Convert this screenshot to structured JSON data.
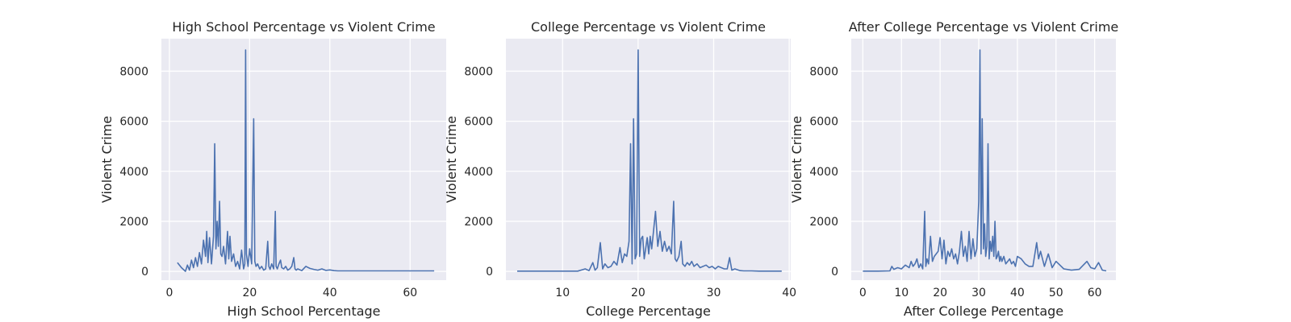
{
  "colors": {
    "series": "#4c72b0",
    "plot_background": "#eaeaf2",
    "grid": "#ffffff"
  },
  "chart_data": [
    {
      "type": "line",
      "title": "High School Percentage vs Violent Crime",
      "xlabel": "High School Percentage",
      "ylabel": "Violent Crime",
      "xlim": [
        -2,
        69
      ],
      "ylim": [
        -350,
        9300
      ],
      "xticks": [
        0,
        20,
        40,
        60
      ],
      "yticks": [
        0,
        2000,
        4000,
        6000,
        8000
      ],
      "grid": true,
      "series": [
        {
          "x": [
            2.0,
            3.0,
            4.0,
            4.5,
            5.0,
            5.5,
            6.0,
            6.5,
            7.0,
            7.5,
            8.0,
            8.5,
            9.0,
            9.3,
            9.6,
            10.0,
            10.5,
            11.0,
            11.3,
            11.6,
            11.9,
            12.2,
            12.5,
            12.8,
            13.1,
            13.5,
            14.0,
            14.5,
            14.8,
            15.1,
            15.5,
            16.0,
            16.5,
            17.0,
            17.5,
            18.0,
            18.5,
            18.8,
            19.0,
            19.2,
            19.6,
            20.0,
            20.5,
            21.0,
            21.3,
            21.6,
            22.0,
            22.5,
            23.0,
            23.5,
            24.0,
            24.5,
            24.8,
            25.1,
            25.5,
            26.0,
            26.4,
            26.6,
            26.9,
            27.3,
            27.7,
            28.0,
            28.5,
            29.0,
            29.5,
            30.0,
            30.5,
            31.0,
            31.3,
            31.6,
            32.0,
            33.0,
            34.0,
            35.0,
            36.0,
            37.0,
            38.0,
            39.0,
            40.0,
            41.0,
            42.0,
            45.0,
            50.0,
            55.0,
            60.0,
            66.0
          ],
          "y": [
            350,
            150,
            0,
            250,
            50,
            450,
            150,
            550,
            200,
            750,
            300,
            1250,
            600,
            1600,
            350,
            1350,
            300,
            1400,
            5100,
            900,
            2000,
            1000,
            2800,
            700,
            600,
            1000,
            300,
            1600,
            500,
            1400,
            400,
            700,
            200,
            400,
            100,
            850,
            100,
            300,
            8850,
            700,
            200,
            900,
            300,
            6100,
            400,
            200,
            300,
            100,
            200,
            50,
            100,
            1200,
            200,
            80,
            300,
            100,
            2400,
            200,
            100,
            300,
            450,
            150,
            100,
            200,
            50,
            100,
            200,
            550,
            100,
            50,
            100,
            30,
            200,
            120,
            80,
            50,
            100,
            40,
            60,
            30,
            20,
            20,
            20,
            20,
            20,
            20
          ]
        }
      ]
    },
    {
      "type": "line",
      "title": "College Percentage vs Violent Crime",
      "xlabel": "College Percentage",
      "ylabel": "Violent Crime",
      "xlim": [
        2.5,
        40.2
      ],
      "ylim": [
        -350,
        9300
      ],
      "xticks": [
        10,
        20,
        30,
        40
      ],
      "yticks": [
        0,
        2000,
        4000,
        6000,
        8000
      ],
      "grid": true,
      "series": [
        {
          "x": [
            4.0,
            6.0,
            8.0,
            10.0,
            12.0,
            13.0,
            13.5,
            14.0,
            14.3,
            14.6,
            15.0,
            15.3,
            15.6,
            16.0,
            16.4,
            16.8,
            17.2,
            17.6,
            17.9,
            18.2,
            18.5,
            18.8,
            19.0,
            19.2,
            19.4,
            19.6,
            19.8,
            20.0,
            20.2,
            20.4,
            20.6,
            20.8,
            21.0,
            21.2,
            21.4,
            21.6,
            21.8,
            22.0,
            22.3,
            22.6,
            22.9,
            23.2,
            23.5,
            23.8,
            24.1,
            24.4,
            24.7,
            24.9,
            25.1,
            25.4,
            25.7,
            25.9,
            26.2,
            26.5,
            26.8,
            27.1,
            27.4,
            27.8,
            28.2,
            28.6,
            29.0,
            29.4,
            29.8,
            30.2,
            30.6,
            31.0,
            31.4,
            31.8,
            32.1,
            32.4,
            32.8,
            33.5,
            34.0,
            35.0,
            36.0,
            37.0,
            39.0
          ],
          "y": [
            10,
            10,
            10,
            10,
            10,
            100,
            30,
            350,
            50,
            150,
            1150,
            100,
            300,
            150,
            200,
            400,
            250,
            950,
            350,
            700,
            600,
            1200,
            5100,
            300,
            6100,
            500,
            700,
            8850,
            600,
            1300,
            1400,
            500,
            900,
            1350,
            700,
            1400,
            900,
            1500,
            2400,
            1000,
            1600,
            800,
            1200,
            800,
            1000,
            700,
            2800,
            500,
            400,
            600,
            1200,
            300,
            200,
            350,
            250,
            400,
            200,
            300,
            150,
            200,
            250,
            150,
            200,
            100,
            200,
            150,
            100,
            100,
            550,
            50,
            100,
            30,
            20,
            20,
            10,
            10,
            10
          ]
        }
      ]
    },
    {
      "type": "line",
      "title": "After College Percentage vs Violent Crime",
      "xlabel": "After College Percentage",
      "ylabel": "Violent Crime",
      "xlim": [
        -3,
        65.5
      ],
      "ylim": [
        -350,
        9300
      ],
      "xticks": [
        0,
        10,
        20,
        30,
        40,
        50,
        60
      ],
      "yticks": [
        0,
        2000,
        4000,
        6000,
        8000
      ],
      "grid": true,
      "series": [
        {
          "x": [
            0.0,
            4.0,
            7.0,
            7.5,
            8.0,
            9.0,
            10.0,
            11.0,
            12.0,
            12.5,
            13.0,
            13.5,
            14.0,
            14.5,
            15.0,
            15.5,
            16.0,
            16.3,
            16.6,
            17.0,
            17.5,
            18.0,
            18.5,
            19.0,
            19.5,
            20.0,
            20.5,
            21.0,
            21.5,
            22.0,
            22.5,
            23.0,
            23.5,
            24.0,
            24.5,
            25.0,
            25.5,
            26.0,
            26.5,
            27.0,
            27.5,
            28.0,
            28.5,
            29.0,
            29.5,
            30.0,
            30.3,
            30.6,
            30.9,
            31.2,
            31.5,
            31.8,
            32.1,
            32.4,
            32.7,
            33.0,
            33.3,
            33.6,
            33.9,
            34.2,
            34.5,
            34.8,
            35.1,
            35.4,
            35.7,
            36.0,
            36.5,
            37.0,
            37.5,
            38.0,
            38.5,
            39.0,
            39.5,
            40.0,
            41.0,
            42.0,
            43.0,
            44.0,
            45.0,
            45.5,
            46.0,
            47.0,
            48.0,
            49.0,
            50.0,
            51.0,
            52.0,
            54.0,
            56.0,
            58.0,
            59.0,
            60.0,
            61.0,
            62.0,
            63.0
          ],
          "y": [
            10,
            10,
            20,
            200,
            80,
            150,
            100,
            250,
            150,
            400,
            200,
            300,
            500,
            150,
            300,
            100,
            2400,
            200,
            500,
            300,
            1400,
            400,
            600,
            700,
            800,
            1350,
            500,
            1250,
            300,
            800,
            600,
            900,
            500,
            700,
            300,
            800,
            1600,
            600,
            1000,
            400,
            1600,
            500,
            1300,
            600,
            900,
            2800,
            8850,
            700,
            6100,
            900,
            1900,
            600,
            1000,
            5100,
            500,
            1200,
            800,
            1400,
            600,
            2000,
            500,
            600,
            800,
            400,
            600,
            400,
            600,
            300,
            400,
            500,
            300,
            400,
            200,
            600,
            500,
            300,
            200,
            200,
            1150,
            500,
            800,
            200,
            700,
            150,
            400,
            250,
            100,
            50,
            80,
            400,
            150,
            100,
            350,
            50,
            20
          ]
        }
      ]
    }
  ]
}
